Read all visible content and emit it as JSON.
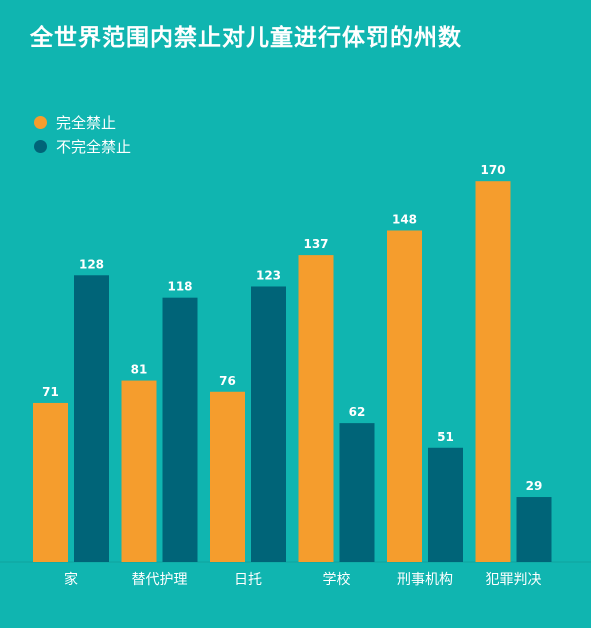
{
  "title": "全世界范围内禁止对儿童进行体罚的州数",
  "colors": {
    "background": "#10b5b0",
    "full": "#f59d2d",
    "partial": "#006478",
    "text": "#ffffff"
  },
  "legend": [
    {
      "label": "完全禁止",
      "color": "#f59d2d"
    },
    {
      "label": "不完全禁止",
      "color": "#006478"
    }
  ],
  "chart_data": {
    "type": "bar",
    "title": "全世界范围内禁止对儿童进行体罚的州数",
    "categories": [
      "家",
      "替代护理",
      "日托",
      "学校",
      "刑事机构",
      "犯罪判决"
    ],
    "series": [
      {
        "name": "完全禁止",
        "values": [
          71,
          81,
          76,
          137,
          148,
          170
        ]
      },
      {
        "name": "不完全禁止",
        "values": [
          128,
          118,
          123,
          62,
          51,
          29
        ]
      }
    ],
    "ylim": [
      0,
      170
    ],
    "grid": false,
    "legend_position": "top-left"
  }
}
